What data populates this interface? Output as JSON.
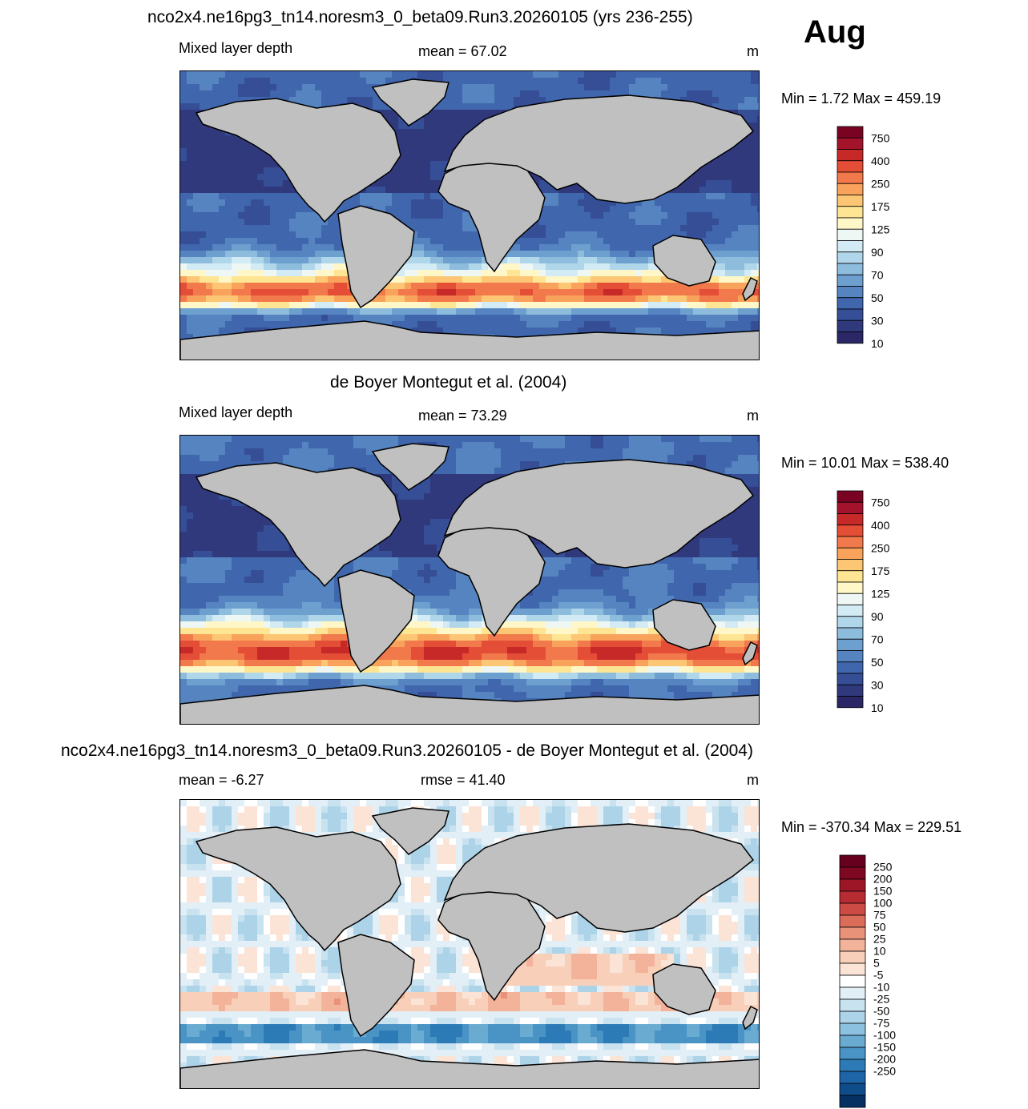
{
  "header": {
    "title": "nco2x4.ne16pg3_tn14.noresm3_0_beta09.Run3.20260105 (yrs 236-255)",
    "month": "Aug"
  },
  "colors": {
    "land": "#c0c0c0",
    "coast": "#000000",
    "seq_palette": [
      "#2b2766",
      "#31397d",
      "#354e96",
      "#4066ad",
      "#5584c0",
      "#6ea0cf",
      "#8ebcdd",
      "#b0d6ea",
      "#d3ebf4",
      "#eef7f4",
      "#fff7c7",
      "#fde593",
      "#fcc674",
      "#f9a25c",
      "#f2794b",
      "#e44d36",
      "#c72828",
      "#a3132b",
      "#7a0323"
    ],
    "div_palette": [
      "#053061",
      "#0f4c8a",
      "#1d65a6",
      "#2c7bb6",
      "#4a93c5",
      "#6aabd2",
      "#8cc2e0",
      "#acd3e8",
      "#c9e2f0",
      "#e2eff7",
      "#ffffff",
      "#fbe3d6",
      "#f8cfb8",
      "#f3b39a",
      "#e9927a",
      "#dc6c5a",
      "#cc4b45",
      "#b72b33",
      "#9c1628",
      "#7e0722",
      "#67001f"
    ]
  },
  "chart_data": [
    {
      "type": "heatmap",
      "title": "nco2x4.ne16pg3_tn14.noresm3_0_beta09.Run3.20260105 (yrs 236-255)",
      "left_label": "Mixed layer depth",
      "center_label": "mean =  67.02",
      "units": "m",
      "minmax": "Min =   1.72 Max = 459.19",
      "mean": 67.02,
      "min": 1.72,
      "max": 459.19,
      "colorbar": {
        "ticks": [
          "750",
          "400",
          "250",
          "175",
          "125",
          "90",
          "70",
          "50",
          "30",
          "10"
        ]
      }
    },
    {
      "type": "heatmap",
      "title": "de Boyer Montegut et al. (2004)",
      "left_label": "Mixed layer depth",
      "center_label": "mean =  73.29",
      "units": "m",
      "minmax": "Min =  10.01 Max = 538.40",
      "mean": 73.29,
      "min": 10.01,
      "max": 538.4,
      "colorbar": {
        "ticks": [
          "750",
          "400",
          "250",
          "175",
          "125",
          "90",
          "70",
          "50",
          "30",
          "10"
        ]
      }
    },
    {
      "type": "heatmap",
      "title": "nco2x4.ne16pg3_tn14.noresm3_0_beta09.Run3.20260105 - de Boyer Montegut et al. (2004)",
      "left_label": "mean =  -6.27",
      "center_label": "rmse =  41.40",
      "units": "m",
      "minmax": "Min = -370.34 Max = 229.51",
      "mean": -6.27,
      "rmse": 41.4,
      "min": -370.34,
      "max": 229.51,
      "colorbar": {
        "ticks": [
          "250",
          "200",
          "150",
          "100",
          "75",
          "50",
          "25",
          "10",
          "5",
          "-5",
          "-10",
          "-25",
          "-50",
          "-75",
          "-100",
          "-150",
          "-200",
          "-250"
        ]
      }
    }
  ]
}
